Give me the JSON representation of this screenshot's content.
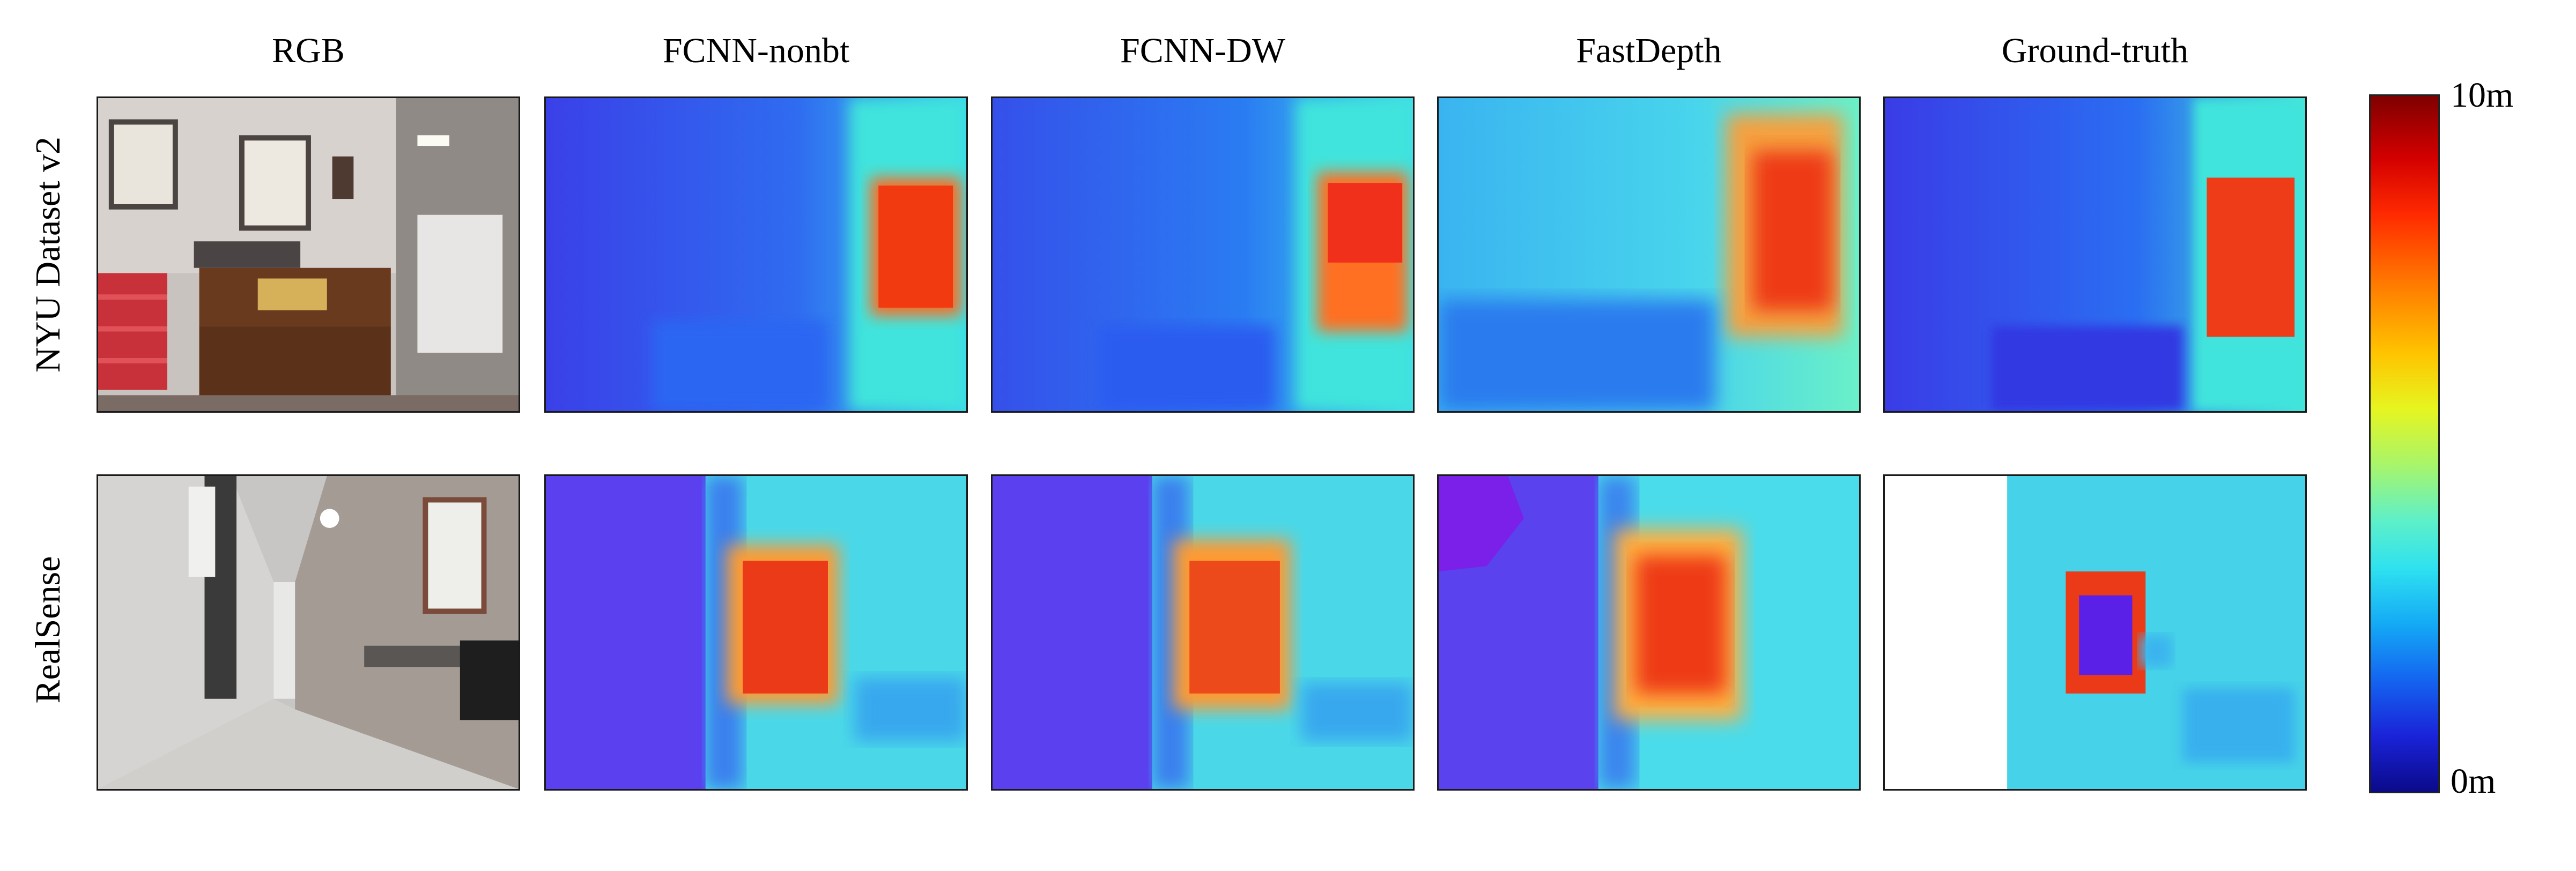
{
  "columns": [
    {
      "label": "RGB"
    },
    {
      "label": "FCNN-nonbt"
    },
    {
      "label": "FCNN-DW"
    },
    {
      "label": "FastDepth"
    },
    {
      "label": "Ground-truth"
    }
  ],
  "rows": [
    {
      "label": "NYU Dataset v2"
    },
    {
      "label": "RealSense"
    }
  ],
  "colorbar": {
    "max_label": "10m",
    "min_label": "0m"
  },
  "colors": {
    "depth_far": "#ff2a00",
    "depth_mid": "#5ef0c8",
    "depth_near": "#1a23d8"
  }
}
